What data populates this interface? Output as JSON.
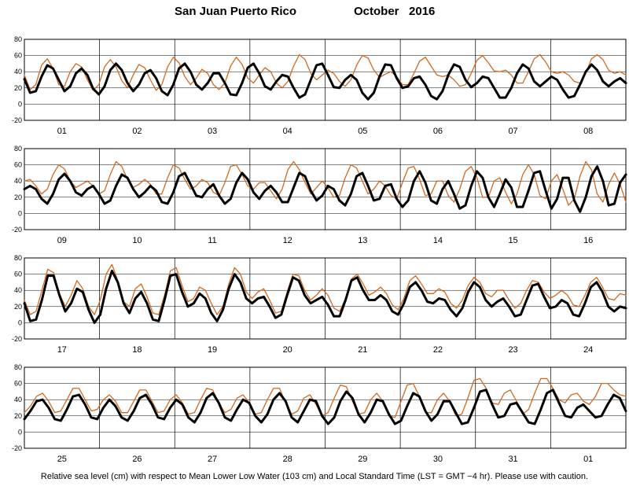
{
  "header": {
    "station": "San Juan Puerto Rico",
    "period": "October   2016"
  },
  "footer": {
    "note": "Relative sea level (cm) with respect to Mean Lower Low Water (103 cm) and Local Standard Time (LST = GMT −4 hr). Please use with caution."
  },
  "colors": {
    "observed": "#d2691e",
    "predicted": "#000000"
  },
  "chart_data": [
    {
      "type": "line",
      "x_labels": [
        "01",
        "02",
        "03",
        "04",
        "05",
        "06",
        "07",
        "08"
      ],
      "ylim": [
        -20,
        80
      ],
      "yticks": [
        -20,
        0,
        20,
        40,
        60,
        80
      ],
      "grid": true,
      "series": [
        {
          "key": "observed",
          "values": [
            36,
            18,
            24,
            48,
            56,
            44,
            24,
            22,
            40,
            50,
            46,
            30,
            17,
            24,
            46,
            55,
            46,
            29,
            20,
            36,
            49,
            45,
            30,
            17,
            24,
            46,
            58,
            51,
            34,
            24,
            32,
            43,
            38,
            24,
            18,
            26,
            47,
            58,
            49,
            32,
            26,
            36,
            45,
            40,
            26,
            20,
            28,
            47,
            61,
            55,
            38,
            30,
            36,
            42,
            38,
            28,
            22,
            30,
            48,
            60,
            57,
            42,
            33,
            37,
            40,
            34,
            24,
            24,
            38,
            53,
            58,
            47,
            36,
            34,
            36,
            30,
            22,
            24,
            38,
            54,
            60,
            51,
            41,
            40,
            42,
            36,
            26,
            26,
            40,
            56,
            61,
            52,
            40,
            38,
            40,
            36,
            28,
            26,
            38,
            56,
            61,
            55,
            42,
            38,
            40,
            36
          ]
        },
        {
          "key": "predicted",
          "values": [
            31,
            14,
            16,
            34,
            48,
            44,
            30,
            16,
            22,
            38,
            44,
            36,
            19,
            12,
            22,
            42,
            50,
            42,
            26,
            16,
            24,
            38,
            42,
            32,
            16,
            11,
            24,
            44,
            50,
            40,
            24,
            18,
            26,
            38,
            38,
            26,
            12,
            11,
            26,
            45,
            50,
            38,
            22,
            18,
            28,
            36,
            34,
            20,
            8,
            12,
            30,
            48,
            50,
            36,
            21,
            20,
            30,
            36,
            30,
            14,
            6,
            14,
            34,
            49,
            48,
            32,
            20,
            22,
            32,
            34,
            24,
            10,
            6,
            16,
            36,
            49,
            46,
            30,
            21,
            26,
            34,
            32,
            20,
            8,
            8,
            20,
            38,
            49,
            44,
            28,
            22,
            28,
            34,
            30,
            18,
            8,
            10,
            24,
            40,
            49,
            42,
            28,
            22,
            28,
            32,
            26
          ]
        }
      ]
    },
    {
      "type": "line",
      "x_labels": [
        "09",
        "10",
        "11",
        "12",
        "13",
        "14",
        "15",
        "16"
      ],
      "ylim": [
        -20,
        80
      ],
      "yticks": [
        -20,
        0,
        20,
        40,
        60,
        80
      ],
      "grid": true,
      "series": [
        {
          "key": "observed",
          "values": [
            40,
            42,
            34,
            24,
            30,
            48,
            60,
            55,
            40,
            32,
            36,
            40,
            34,
            24,
            28,
            48,
            64,
            58,
            42,
            32,
            36,
            42,
            36,
            24,
            24,
            44,
            60,
            56,
            42,
            30,
            34,
            42,
            38,
            26,
            22,
            38,
            58,
            60,
            48,
            34,
            30,
            38,
            38,
            28,
            18,
            30,
            54,
            64,
            54,
            38,
            24,
            32,
            40,
            32,
            20,
            22,
            44,
            60,
            56,
            40,
            24,
            30,
            40,
            34,
            22,
            18,
            38,
            56,
            58,
            42,
            22,
            24,
            40,
            40,
            22,
            14,
            30,
            52,
            58,
            44,
            20,
            20,
            40,
            44,
            26,
            12,
            24,
            48,
            60,
            48,
            22,
            18,
            40,
            48,
            30,
            10,
            18,
            46,
            64,
            54,
            24,
            14,
            36,
            50,
            36,
            14
          ]
        },
        {
          "key": "predicted",
          "values": [
            30,
            34,
            30,
            18,
            12,
            24,
            42,
            49,
            40,
            26,
            22,
            30,
            34,
            24,
            12,
            16,
            34,
            48,
            44,
            30,
            20,
            26,
            34,
            28,
            14,
            12,
            26,
            46,
            50,
            36,
            22,
            20,
            30,
            36,
            22,
            12,
            18,
            38,
            50,
            42,
            26,
            18,
            28,
            34,
            26,
            14,
            14,
            32,
            50,
            46,
            28,
            16,
            22,
            34,
            30,
            16,
            10,
            24,
            46,
            50,
            34,
            16,
            18,
            34,
            36,
            18,
            8,
            16,
            40,
            52,
            38,
            16,
            12,
            30,
            40,
            24,
            6,
            10,
            34,
            52,
            44,
            20,
            8,
            24,
            42,
            32,
            8,
            8,
            28,
            50,
            52,
            28,
            6,
            18,
            44,
            44,
            16,
            2,
            20,
            46,
            58,
            40,
            10,
            12,
            38,
            48
          ]
        }
      ]
    },
    {
      "type": "line",
      "x_labels": [
        "17",
        "18",
        "19",
        "20",
        "21",
        "22",
        "23",
        "24"
      ],
      "ylim": [
        -20,
        80
      ],
      "yticks": [
        -20,
        0,
        20,
        40,
        60,
        80
      ],
      "grid": true,
      "series": [
        {
          "key": "observed",
          "values": [
            28,
            10,
            14,
            40,
            66,
            62,
            36,
            20,
            34,
            52,
            42,
            20,
            10,
            28,
            60,
            72,
            52,
            26,
            20,
            42,
            48,
            32,
            12,
            10,
            34,
            64,
            68,
            46,
            26,
            30,
            44,
            40,
            24,
            10,
            20,
            48,
            68,
            60,
            38,
            30,
            38,
            42,
            28,
            12,
            14,
            38,
            60,
            58,
            40,
            28,
            34,
            42,
            34,
            18,
            14,
            30,
            54,
            60,
            48,
            34,
            38,
            44,
            36,
            22,
            16,
            30,
            52,
            58,
            48,
            36,
            36,
            42,
            38,
            24,
            18,
            28,
            46,
            56,
            50,
            36,
            32,
            40,
            40,
            28,
            18,
            24,
            40,
            52,
            50,
            38,
            30,
            34,
            40,
            34,
            22,
            20,
            34,
            50,
            56,
            44,
            30,
            28,
            36,
            34
          ]
        },
        {
          "key": "predicted",
          "values": [
            24,
            2,
            4,
            28,
            58,
            58,
            34,
            14,
            24,
            42,
            38,
            16,
            0,
            10,
            42,
            64,
            50,
            24,
            12,
            30,
            38,
            24,
            4,
            2,
            28,
            58,
            60,
            38,
            20,
            24,
            36,
            30,
            12,
            2,
            16,
            42,
            60,
            50,
            30,
            24,
            30,
            32,
            20,
            6,
            10,
            34,
            56,
            52,
            34,
            24,
            28,
            32,
            22,
            8,
            8,
            28,
            52,
            56,
            40,
            28,
            28,
            34,
            28,
            14,
            10,
            24,
            44,
            50,
            40,
            26,
            24,
            30,
            28,
            16,
            8,
            18,
            38,
            50,
            44,
            28,
            20,
            26,
            30,
            20,
            8,
            10,
            28,
            46,
            48,
            32,
            18,
            20,
            28,
            24,
            10,
            8,
            24,
            44,
            50,
            38,
            20,
            14,
            20,
            18
          ]
        }
      ]
    },
    {
      "type": "line",
      "x_labels": [
        "25",
        "26",
        "27",
        "28",
        "29",
        "30",
        "31",
        "01"
      ],
      "ylim": [
        -20,
        80
      ],
      "yticks": [
        -20,
        0,
        20,
        40,
        60,
        80
      ],
      "grid": true,
      "series": [
        {
          "key": "observed",
          "values": [
            24,
            32,
            44,
            48,
            38,
            24,
            26,
            40,
            54,
            54,
            40,
            26,
            28,
            40,
            46,
            38,
            24,
            24,
            38,
            52,
            52,
            38,
            24,
            26,
            40,
            46,
            36,
            22,
            24,
            40,
            54,
            52,
            36,
            24,
            28,
            42,
            46,
            36,
            22,
            24,
            40,
            54,
            54,
            36,
            22,
            26,
            42,
            46,
            34,
            20,
            24,
            42,
            58,
            56,
            38,
            22,
            24,
            40,
            48,
            38,
            20,
            18,
            38,
            58,
            60,
            44,
            24,
            24,
            40,
            48,
            38,
            20,
            22,
            42,
            64,
            66,
            54,
            36,
            34,
            48,
            52,
            38,
            22,
            28,
            48,
            66,
            66,
            54,
            40,
            36,
            46,
            48,
            38,
            34,
            44,
            60,
            60,
            52,
            46,
            44
          ]
        },
        {
          "key": "predicted",
          "values": [
            16,
            26,
            38,
            40,
            30,
            16,
            14,
            28,
            44,
            46,
            34,
            18,
            16,
            30,
            40,
            32,
            18,
            14,
            26,
            42,
            46,
            34,
            18,
            16,
            30,
            40,
            34,
            18,
            12,
            24,
            42,
            48,
            36,
            18,
            14,
            28,
            40,
            36,
            20,
            12,
            22,
            40,
            48,
            38,
            18,
            12,
            26,
            40,
            38,
            20,
            10,
            18,
            38,
            50,
            42,
            22,
            12,
            24,
            40,
            38,
            22,
            10,
            14,
            32,
            48,
            44,
            26,
            14,
            22,
            38,
            38,
            24,
            10,
            12,
            30,
            50,
            52,
            34,
            18,
            20,
            34,
            36,
            24,
            12,
            10,
            28,
            48,
            52,
            36,
            20,
            18,
            30,
            34,
            26,
            18,
            20,
            34,
            46,
            42,
            26
          ]
        }
      ]
    }
  ]
}
